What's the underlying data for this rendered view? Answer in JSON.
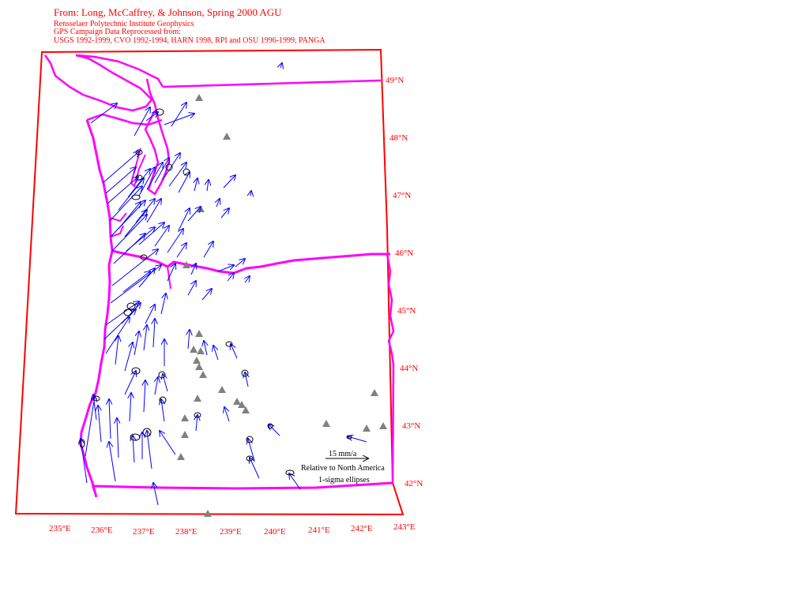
{
  "header": {
    "line1": "From: Long, McCaffrey, & Johnson, Spring 2000 AGU",
    "line2": "Rensselaer Polytechnic Institute Geophysics",
    "line3": "GPS Campaign Data Reprocessed from:",
    "line4": "USGS 1992-1999, CVO 1992-1994, HARN 1998, RPI and OSU 1996-1999, PANGA"
  },
  "lat_labels": [
    "49°N",
    "48°N",
    "47°N",
    "46°N",
    "45°N",
    "44°N",
    "43°N",
    "42°N"
  ],
  "lon_labels": [
    "235°E",
    "236°E",
    "237°E",
    "238°E",
    "239°E",
    "240°E",
    "241°E",
    "242°E",
    "243°E"
  ],
  "legend": {
    "scale": "15 mm/a",
    "reference": "Relative to North America",
    "ellipses": "1-sigma ellipses"
  },
  "colors": {
    "frame": "#ff0000",
    "coast_and_borders": "#ff00ff",
    "vectors": "#0000ff",
    "volcanoes": "#808080",
    "text": "#ff0000"
  }
}
